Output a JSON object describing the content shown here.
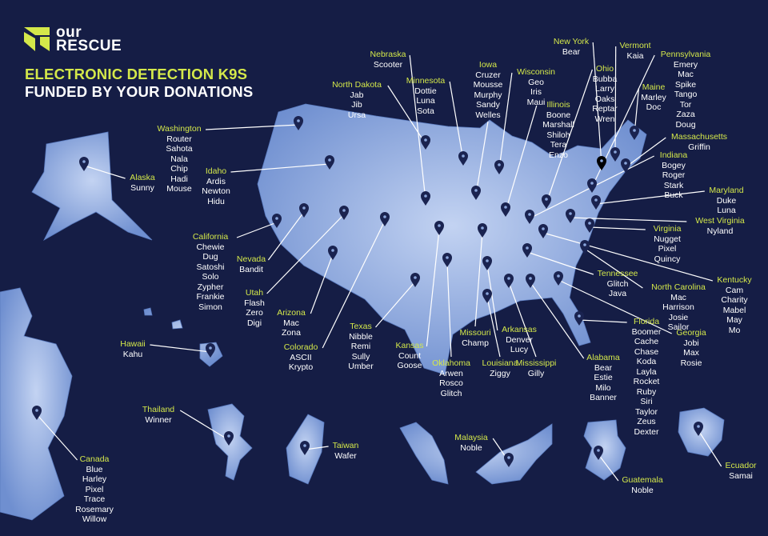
{
  "brand": {
    "logo_line1": "OUR",
    "logo_line2": "RESCUE",
    "accent": "#d4e84a"
  },
  "headline": {
    "line1": "ELECTRONIC DETECTION K9S",
    "line2": "FUNDED BY YOUR DONATIONS"
  },
  "colors": {
    "background": "#151d45",
    "land": "#7e9dd8",
    "land_light": "#a8bfea",
    "pin": "#1a2350",
    "text": "#ffffff"
  },
  "regions": [
    {
      "name": "Alaska",
      "dogs": [
        "Sunny"
      ]
    },
    {
      "name": "Washington",
      "dogs": [
        "Router",
        "Sahota",
        "Nala",
        "Chip",
        "Hadi",
        "Mouse"
      ]
    },
    {
      "name": "Idaho",
      "dogs": [
        "Ardis",
        "Newton",
        "Hidu"
      ]
    },
    {
      "name": "California",
      "dogs": [
        "Chewie",
        "Dug",
        "Satoshi",
        "Solo",
        "Zypher",
        "Frankie",
        "Simon"
      ]
    },
    {
      "name": "Nevada",
      "dogs": [
        "Bandit"
      ]
    },
    {
      "name": "Utah",
      "dogs": [
        "Flash",
        "Zero",
        "Digi"
      ]
    },
    {
      "name": "Arizona",
      "dogs": [
        "Mac",
        "Zona"
      ]
    },
    {
      "name": "Colorado",
      "dogs": [
        "ASCII",
        "Krypto"
      ]
    },
    {
      "name": "Texas",
      "dogs": [
        "Nibble",
        "Remi",
        "Sully",
        "Umber"
      ]
    },
    {
      "name": "Kansas",
      "dogs": [
        "Count",
        "Goose"
      ]
    },
    {
      "name": "Oklahoma",
      "dogs": [
        "Arwen",
        "Rosco",
        "Glitch"
      ]
    },
    {
      "name": "Missouri",
      "dogs": [
        "Champ"
      ]
    },
    {
      "name": "Louisiana",
      "dogs": [
        "Ziggy"
      ]
    },
    {
      "name": "Arkansas",
      "dogs": [
        "Denver",
        "Lucy"
      ]
    },
    {
      "name": "Mississippi",
      "dogs": [
        "Gilly"
      ]
    },
    {
      "name": "Alabama",
      "dogs": [
        "Bear",
        "Estie",
        "Milo",
        "Banner"
      ]
    },
    {
      "name": "Florida",
      "dogs": [
        "Boomer",
        "Cache",
        "Chase",
        "Koda",
        "Layla",
        "Rocket",
        "Ruby",
        "Siri",
        "Taylor",
        "Zeus",
        "Dexter"
      ]
    },
    {
      "name": "Georgia",
      "dogs": [
        "Jobi",
        "Max",
        "Rosie"
      ]
    },
    {
      "name": "Tennessee",
      "dogs": [
        "Glitch",
        "Java"
      ]
    },
    {
      "name": "North Carolina",
      "dogs": [
        "Mac",
        "Harrison",
        "Josie",
        "Sailor"
      ]
    },
    {
      "name": "Kentucky",
      "dogs": [
        "Cam",
        "Charity",
        "Mabel",
        "May",
        "Mo"
      ]
    },
    {
      "name": "Virginia",
      "dogs": [
        "Nugget",
        "Pixel",
        "Quincy"
      ]
    },
    {
      "name": "West Virginia",
      "dogs": [
        "Nyland"
      ]
    },
    {
      "name": "Maryland",
      "dogs": [
        "Duke",
        "Luna"
      ]
    },
    {
      "name": "Indiana",
      "dogs": [
        "Bogey",
        "Roger",
        "Stark",
        "Buck"
      ]
    },
    {
      "name": "Massachusetts",
      "dogs": [
        "Griffin"
      ]
    },
    {
      "name": "Pennsylvania",
      "dogs": [
        "Emery",
        "Mac",
        "Spike",
        "Tango",
        "Tor",
        "Zaza",
        "Doug"
      ]
    },
    {
      "name": "Maine",
      "dogs": [
        "Marley",
        "Doc"
      ]
    },
    {
      "name": "Vermont",
      "dogs": [
        "Kaia"
      ]
    },
    {
      "name": "Ohio",
      "dogs": [
        "Bubba",
        "Larry",
        "Oaks",
        "Reptar",
        "Wren"
      ]
    },
    {
      "name": "New York",
      "dogs": [
        "Bear"
      ]
    },
    {
      "name": "Illinois",
      "dogs": [
        "Boone",
        "Marshall",
        "Shiloh",
        "Tera",
        "Enzo"
      ]
    },
    {
      "name": "Wisconsin",
      "dogs": [
        "Geo",
        "Iris",
        "Maui"
      ]
    },
    {
      "name": "Iowa",
      "dogs": [
        "Cruzer",
        "Mousse",
        "Murphy",
        "Sandy",
        "Welles"
      ]
    },
    {
      "name": "Minnesota",
      "dogs": [
        "Dottie",
        "Luna",
        "Sota"
      ]
    },
    {
      "name": "Nebraska",
      "dogs": [
        "Scooter"
      ]
    },
    {
      "name": "North Dakota",
      "dogs": [
        "Jab",
        "Jib",
        "Ursa"
      ]
    },
    {
      "name": "Hawaii",
      "dogs": [
        "Kahu"
      ]
    },
    {
      "name": "Canada",
      "dogs": [
        "Blue",
        "Harley",
        "Pixel",
        "Trace",
        "Rosemary",
        "Willow"
      ]
    },
    {
      "name": "Thailand",
      "dogs": [
        "Winner"
      ]
    },
    {
      "name": "Taiwan",
      "dogs": [
        "Wafer"
      ]
    },
    {
      "name": "Malaysia",
      "dogs": [
        "Noble"
      ]
    },
    {
      "name": "Guatemala",
      "dogs": [
        "Noble"
      ]
    },
    {
      "name": "Ecuador",
      "dogs": [
        "Samai"
      ]
    }
  ]
}
